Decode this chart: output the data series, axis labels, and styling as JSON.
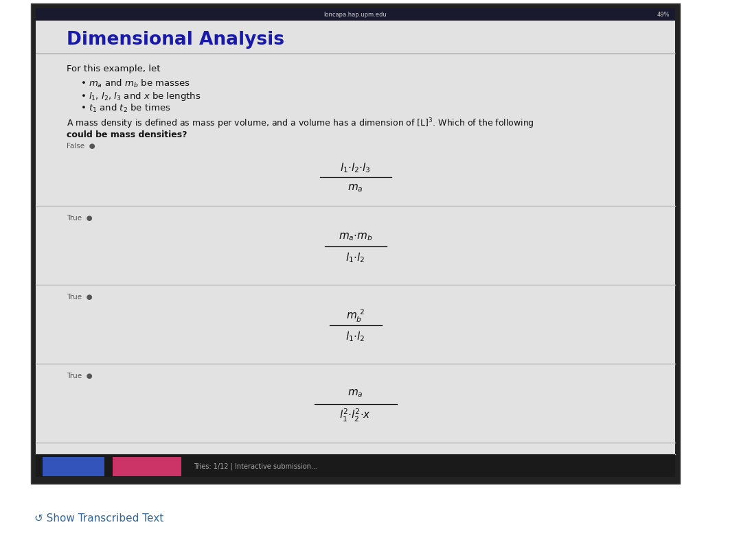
{
  "title": "Dimensional Analysis",
  "status_bar_text": "loncapa.hap.upm.edu",
  "status_bar_right": "♪ ★ ■ 49%",
  "intro_text": "For this example, let",
  "bullet1": "$m_a$ and $m_b$ be masses",
  "bullet2": "$l_1$, $l_2$, $l_3$ and $x$ be lengths",
  "bullet3": "$t_1$ and $t_2$ be times",
  "question_line1": "A mass density is defined as mass per volume, and a volume has a dimension of [L]$^3$. Which of the following",
  "question_line2": "could be mass densities?",
  "label_false": "False  ●",
  "label_true": "True  ●",
  "formula1_num": "$l_1{\\cdot}l_2{\\cdot}l_3$",
  "formula1_den": "$m_a$",
  "formula2_num": "$m_a{\\cdot}m_b$",
  "formula2_den": "$l_1{\\cdot}l_2$",
  "formula3_num": "$m_b^{\\ 2}$",
  "formula3_den": "$l_1{\\cdot}l_2$",
  "formula4_num": "$m_a$",
  "formula4_den": "$l_1^2{\\cdot}l_2^2{\\cdot}x$",
  "outer_bg": "#ffffff",
  "device_border": "#222222",
  "device_bg": "#c8c8c8",
  "panel_bg": "#e2e2e2",
  "title_color": "#1a1aaa",
  "text_color": "#111111",
  "line_color": "#bbbbbb",
  "label_color": "#555555",
  "status_bar_bg": "#1a1a2e",
  "bottom_bar_bg": "#111111",
  "blue_btn_color": "#3355bb",
  "pink_btn_color": "#cc3366",
  "show_transcribed_color": "#336699",
  "show_transcribed_text": "↺ Show Transcribed Text"
}
